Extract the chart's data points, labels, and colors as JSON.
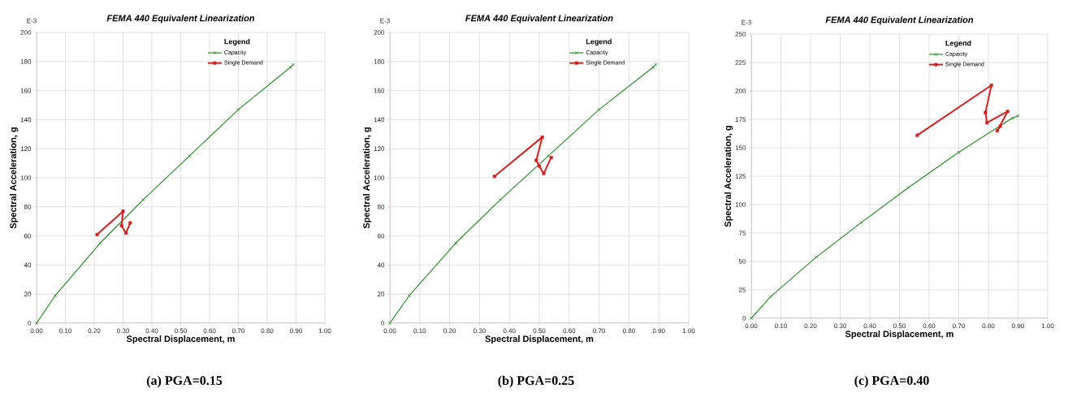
{
  "chart_data": [
    {
      "type": "line",
      "title": "FEMA 440 Equivalent Linearization",
      "xlabel": "Spectral Displacement, m",
      "ylabel": "Spectral Acceleration, g",
      "legend_title": "Legend",
      "xlim": [
        0,
        1
      ],
      "xticks": [
        {
          "value": 0,
          "label": "0.00"
        },
        {
          "value": 0.1,
          "label": "0.10"
        },
        {
          "value": 0.2,
          "label": "0.20"
        },
        {
          "value": 0.3,
          "label": "0.30"
        },
        {
          "value": 0.4,
          "label": "0.40"
        },
        {
          "value": 0.5,
          "label": "0.50"
        },
        {
          "value": 0.6,
          "label": "0.60"
        },
        {
          "value": 0.7,
          "label": "0.70"
        },
        {
          "value": 0.8,
          "label": "0.80"
        },
        {
          "value": 0.9,
          "label": "0.90"
        },
        {
          "value": 1,
          "label": "1.00"
        }
      ],
      "ylim": [
        0,
        200
      ],
      "yticks": [
        0,
        20,
        40,
        60,
        80,
        100,
        120,
        140,
        160,
        180,
        200
      ],
      "grid": true,
      "legend": "top right",
      "series": [
        {
          "name": "Capacity",
          "color": "#2e8b2e",
          "marker": "cross",
          "x": [
            0,
            0.065,
            0.22,
            0.37,
            0.53,
            0.7,
            0.88,
            0.89
          ],
          "values": [
            0,
            19,
            55,
            85,
            115,
            147,
            176,
            178
          ]
        },
        {
          "name": "Single Demand",
          "color": "#d42020",
          "marker": "square",
          "x": [
            0.21,
            0.3,
            0.295,
            0.31,
            0.325
          ],
          "values": [
            61,
            77,
            67,
            62,
            69
          ]
        }
      ],
      "annotations": [
        "E-3",
        "(a) PGA=0.15"
      ]
    },
    {
      "type": "line",
      "title": "FEMA 440 Equivalent Linearization",
      "xlabel": "Spectral Displacement, m",
      "ylabel": "Spectral Acceleration, g",
      "legend_title": "Legend",
      "xlim": [
        0,
        1
      ],
      "xticks": [
        {
          "value": 0,
          "label": "0.00"
        },
        {
          "value": 0.1,
          "label": "0.10"
        },
        {
          "value": 0.2,
          "label": "0.20"
        },
        {
          "value": 0.3,
          "label": "0.30"
        },
        {
          "value": 0.4,
          "label": "0.40"
        },
        {
          "value": 0.5,
          "label": "0.50"
        },
        {
          "value": 0.6,
          "label": "0.60"
        },
        {
          "value": 0.7,
          "label": "0.70"
        },
        {
          "value": 0.8,
          "label": "0.80"
        },
        {
          "value": 0.9,
          "label": "0.90"
        },
        {
          "value": 1,
          "label": "1.00"
        }
      ],
      "ylim": [
        0,
        200
      ],
      "yticks": [
        0,
        20,
        40,
        60,
        80,
        100,
        120,
        140,
        160,
        180,
        200
      ],
      "grid": true,
      "legend": "top right",
      "series": [
        {
          "name": "Capacity",
          "color": "#2e8b2e",
          "marker": "cross",
          "x": [
            0,
            0.065,
            0.22,
            0.37,
            0.53,
            0.7,
            0.88,
            0.89
          ],
          "values": [
            0,
            19,
            55,
            85,
            115,
            147,
            176,
            178
          ]
        },
        {
          "name": "Single Demand",
          "color": "#d42020",
          "marker": "square",
          "x": [
            0.35,
            0.51,
            0.49,
            0.5,
            0.515,
            0.54
          ],
          "values": [
            101,
            128,
            112,
            108,
            103,
            114
          ]
        }
      ],
      "annotations": [
        "E-3",
        "(b) PGA=0.25"
      ]
    },
    {
      "type": "line",
      "title": "FEMA 440 Equivalent Linearization",
      "xlabel": "Spectral Displacement, m",
      "ylabel": "Spectral Acceleration, g",
      "legend_title": "Legend",
      "xlim": [
        0,
        1
      ],
      "xticks": [
        {
          "value": 0,
          "label": "0.00"
        },
        {
          "value": 0.1,
          "label": "0.10"
        },
        {
          "value": 0.2,
          "label": "0.20"
        },
        {
          "value": 0.3,
          "label": "0.30"
        },
        {
          "value": 0.4,
          "label": "0.40"
        },
        {
          "value": 0.5,
          "label": "0.50"
        },
        {
          "value": 0.6,
          "label": "0.60"
        },
        {
          "value": 0.7,
          "label": "0.70"
        },
        {
          "value": 0.8,
          "label": "0.80"
        },
        {
          "value": 0.9,
          "label": "0.90"
        },
        {
          "value": 1,
          "label": "1.00"
        }
      ],
      "ylim": [
        0,
        250
      ],
      "yticks": [
        0,
        25,
        50,
        75,
        100,
        125,
        150,
        175,
        200,
        225,
        250
      ],
      "grid": true,
      "legend": "top right",
      "series": [
        {
          "name": "Capacity",
          "color": "#2e8b2e",
          "marker": "cross",
          "x": [
            0,
            0.065,
            0.22,
            0.37,
            0.53,
            0.7,
            0.88,
            0.9
          ],
          "values": [
            0,
            19,
            54,
            84,
            115,
            146,
            176,
            178
          ]
        },
        {
          "name": "Single Demand",
          "color": "#d42020",
          "marker": "square",
          "x": [
            0.56,
            0.81,
            0.79,
            0.795,
            0.865,
            0.83,
            0.84
          ],
          "values": [
            161,
            205,
            181,
            172,
            182,
            165,
            169
          ]
        }
      ],
      "annotations": [
        "E-3",
        "(c) PGA=0.40"
      ]
    }
  ]
}
